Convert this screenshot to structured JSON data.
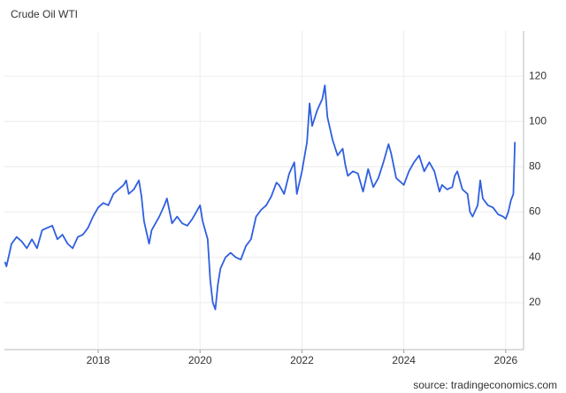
{
  "chart_data": {
    "type": "line",
    "title": "Crude Oil WTI",
    "source": "source: tradingeconomics.com",
    "x": [
      2016.17,
      2016.2,
      2016.25,
      2016.3,
      2016.4,
      2016.5,
      2016.6,
      2016.7,
      2016.8,
      2016.9,
      2017.0,
      2017.1,
      2017.2,
      2017.3,
      2017.4,
      2017.5,
      2017.6,
      2017.7,
      2017.8,
      2017.9,
      2018.0,
      2018.1,
      2018.2,
      2018.3,
      2018.4,
      2018.5,
      2018.55,
      2018.6,
      2018.7,
      2018.8,
      2018.85,
      2018.9,
      2019.0,
      2019.05,
      2019.2,
      2019.3,
      2019.35,
      2019.45,
      2019.55,
      2019.65,
      2019.75,
      2019.85,
      2019.95,
      2020.0,
      2020.05,
      2020.15,
      2020.2,
      2020.25,
      2020.3,
      2020.35,
      2020.4,
      2020.5,
      2020.6,
      2020.7,
      2020.8,
      2020.9,
      2021.0,
      2021.1,
      2021.2,
      2021.3,
      2021.4,
      2021.5,
      2021.55,
      2021.65,
      2021.75,
      2021.85,
      2021.9,
      2022.0,
      2022.1,
      2022.15,
      2022.2,
      2022.3,
      2022.4,
      2022.45,
      2022.5,
      2022.6,
      2022.7,
      2022.8,
      2022.85,
      2022.9,
      2023.0,
      2023.1,
      2023.2,
      2023.3,
      2023.4,
      2023.5,
      2023.6,
      2023.7,
      2023.75,
      2023.85,
      2023.95,
      2024.0,
      2024.1,
      2024.2,
      2024.3,
      2024.4,
      2024.5,
      2024.6,
      2024.7,
      2024.75,
      2024.85,
      2024.95,
      2025.0,
      2025.05,
      2025.15,
      2025.25,
      2025.3,
      2025.35,
      2025.45,
      2025.5,
      2025.55,
      2025.65,
      2025.75,
      2025.85,
      2025.95,
      2026.0,
      2026.05,
      2026.1,
      2026.15,
      2026.18
    ],
    "series": [
      {
        "name": "Crude Oil WTI",
        "color": "#2f5fe0",
        "values": [
          38,
          36,
          41,
          46,
          49,
          47,
          44,
          48,
          44,
          52,
          53,
          54,
          48,
          50,
          46,
          44,
          49,
          50,
          53,
          58,
          62,
          64,
          63,
          68,
          70,
          72,
          74,
          68,
          70,
          74,
          67,
          56,
          46,
          52,
          58,
          63,
          66,
          55,
          58,
          55,
          54,
          57,
          61,
          63,
          56,
          48,
          30,
          20,
          17,
          28,
          35,
          40,
          42,
          40,
          39,
          45,
          48,
          58,
          61,
          63,
          67,
          73,
          72,
          68,
          77,
          82,
          68,
          78,
          91,
          108,
          98,
          105,
          110,
          116,
          102,
          92,
          85,
          88,
          81,
          76,
          78,
          77,
          69,
          79,
          71,
          75,
          82,
          90,
          86,
          75,
          73,
          72,
          78,
          82,
          85,
          78,
          82,
          78,
          69,
          72,
          70,
          71,
          76,
          78,
          70,
          68,
          60,
          58,
          63,
          74,
          66,
          63,
          62,
          59,
          58,
          57,
          60,
          65,
          68,
          91
        ]
      }
    ],
    "xlim": [
      2016.16,
      2026.35
    ],
    "xticks": [
      2018,
      2020,
      2022,
      2024,
      2026
    ],
    "ylim": [
      0,
      140
    ],
    "yticks": [
      20,
      40,
      60,
      80,
      100,
      120
    ],
    "grid": true
  }
}
